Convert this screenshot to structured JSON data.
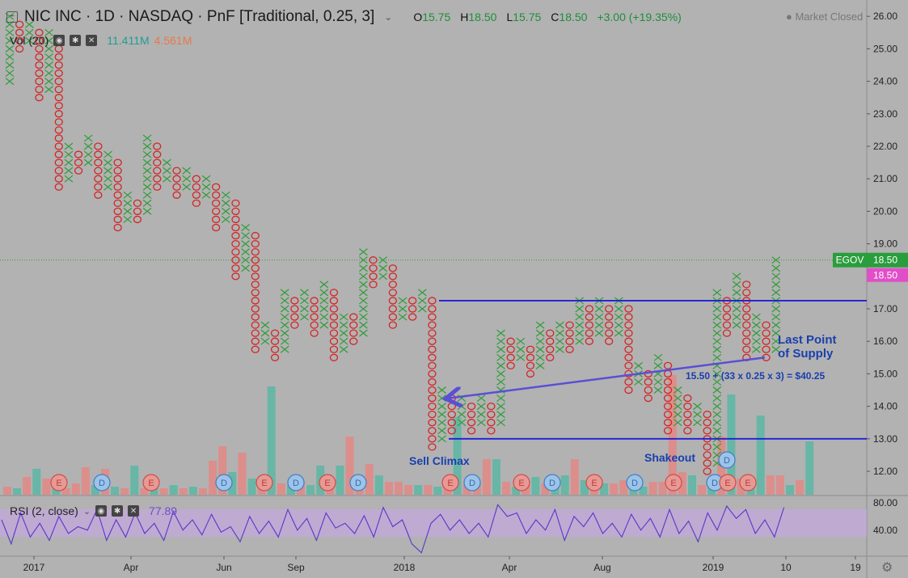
{
  "header": {
    "collapse_icon": "minus-box-icon",
    "title": "NIC INC · 1D · NASDAQ · PnF [Traditional, 0.25, 3]",
    "o_label": "O",
    "o_value": "15.75",
    "h_label": "H",
    "h_value": "18.50",
    "l_label": "L",
    "l_value": "15.75",
    "c_label": "C",
    "c_value": "18.50",
    "change": "+3.00 (+19.35%)",
    "market_status": "● Market Closed"
  },
  "volume": {
    "label": "Vol (20)",
    "value1": "11.411M",
    "value2": "4.561M"
  },
  "rsi": {
    "label": "RSI (2, close)",
    "value": "77.89"
  },
  "price_axis": {
    "ticks": [
      "26.00",
      "25.00",
      "24.00",
      "23.00",
      "22.00",
      "21.00",
      "20.00",
      "19.00",
      "18.00",
      "17.00",
      "16.00",
      "15.00",
      "14.00",
      "13.00",
      "12.00"
    ],
    "last_symbol": "EGOV",
    "last_price": "18.50",
    "pink_price": "18.50",
    "symbol_color": "#2a9d3c",
    "pink_color": "#e04fc8"
  },
  "rsi_axis": {
    "ticks": [
      "80.00",
      "40.00"
    ]
  },
  "time_axis": {
    "labels": [
      "2017",
      "Apr",
      "Jun",
      "Sep",
      "2018",
      "Apr",
      "Aug",
      "2019",
      "10",
      "19"
    ]
  },
  "colors": {
    "x": "#2f9d38",
    "o": "#d42525",
    "line": "#1f1fd6",
    "arrow": "#5a4fd6",
    "rsi": "#5a36c8",
    "rsi_band": "#c3a7dc"
  },
  "annotations": {
    "sell_climax": "Sell Climax",
    "shakeout": "Shakeout",
    "lps_line1": "Last Point",
    "lps_line2": "of Supply",
    "target": "15.50 + (33 x 0.25 x 3) = $40.25"
  },
  "chart_data": {
    "type": "point-and-figure",
    "symbol": "EGOV",
    "box_size": 0.25,
    "reversal": 3,
    "ylim": [
      11.5,
      26.25
    ],
    "columns": [
      {
        "t": "X",
        "lo": 24.0,
        "hi": 26.0
      },
      {
        "t": "O",
        "lo": 25.0,
        "hi": 25.75
      },
      {
        "t": "X",
        "lo": 25.25,
        "hi": 25.75
      },
      {
        "t": "O",
        "lo": 23.5,
        "hi": 25.5
      },
      {
        "t": "X",
        "lo": 23.75,
        "hi": 25.5
      },
      {
        "t": "O",
        "lo": 20.75,
        "hi": 25.25
      },
      {
        "t": "X",
        "lo": 21.0,
        "hi": 22.0
      },
      {
        "t": "O",
        "lo": 21.25,
        "hi": 21.75
      },
      {
        "t": "X",
        "lo": 21.5,
        "hi": 22.25
      },
      {
        "t": "O",
        "lo": 20.5,
        "hi": 22.0
      },
      {
        "t": "X",
        "lo": 20.75,
        "hi": 21.75
      },
      {
        "t": "O",
        "lo": 19.5,
        "hi": 21.5
      },
      {
        "t": "X",
        "lo": 19.75,
        "hi": 20.5
      },
      {
        "t": "O",
        "lo": 19.75,
        "hi": 20.25
      },
      {
        "t": "X",
        "lo": 20.0,
        "hi": 22.25
      },
      {
        "t": "O",
        "lo": 20.75,
        "hi": 22.0
      },
      {
        "t": "X",
        "lo": 21.0,
        "hi": 21.5
      },
      {
        "t": "O",
        "lo": 20.5,
        "hi": 21.25
      },
      {
        "t": "X",
        "lo": 20.75,
        "hi": 21.25
      },
      {
        "t": "O",
        "lo": 20.25,
        "hi": 21.0
      },
      {
        "t": "X",
        "lo": 20.5,
        "hi": 21.0
      },
      {
        "t": "O",
        "lo": 19.5,
        "hi": 20.75
      },
      {
        "t": "X",
        "lo": 19.75,
        "hi": 20.5
      },
      {
        "t": "O",
        "lo": 18.0,
        "hi": 20.25
      },
      {
        "t": "X",
        "lo": 18.25,
        "hi": 19.5
      },
      {
        "t": "O",
        "lo": 15.75,
        "hi": 19.25
      },
      {
        "t": "X",
        "lo": 16.0,
        "hi": 16.5
      },
      {
        "t": "O",
        "lo": 15.5,
        "hi": 16.25
      },
      {
        "t": "X",
        "lo": 15.75,
        "hi": 17.5
      },
      {
        "t": "O",
        "lo": 16.5,
        "hi": 17.25
      },
      {
        "t": "X",
        "lo": 16.75,
        "hi": 17.5
      },
      {
        "t": "O",
        "lo": 16.25,
        "hi": 17.25
      },
      {
        "t": "X",
        "lo": 16.5,
        "hi": 17.75
      },
      {
        "t": "O",
        "lo": 15.5,
        "hi": 17.5
      },
      {
        "t": "X",
        "lo": 15.75,
        "hi": 16.75
      },
      {
        "t": "O",
        "lo": 16.0,
        "hi": 16.75
      },
      {
        "t": "X",
        "lo": 16.25,
        "hi": 18.75
      },
      {
        "t": "O",
        "lo": 17.75,
        "hi": 18.5
      },
      {
        "t": "X",
        "lo": 18.0,
        "hi": 18.5
      },
      {
        "t": "O",
        "lo": 16.5,
        "hi": 18.25
      },
      {
        "t": "X",
        "lo": 16.75,
        "hi": 17.25
      },
      {
        "t": "O",
        "lo": 16.75,
        "hi": 17.25
      },
      {
        "t": "X",
        "lo": 17.0,
        "hi": 17.5
      },
      {
        "t": "O",
        "lo": 12.75,
        "hi": 17.25
      },
      {
        "t": "X",
        "lo": 13.0,
        "hi": 14.5
      },
      {
        "t": "O",
        "lo": 13.25,
        "hi": 14.25
      },
      {
        "t": "X",
        "lo": 13.5,
        "hi": 14.25
      },
      {
        "t": "O",
        "lo": 13.25,
        "hi": 14.0
      },
      {
        "t": "X",
        "lo": 13.5,
        "hi": 14.25
      },
      {
        "t": "O",
        "lo": 13.25,
        "hi": 14.0
      },
      {
        "t": "X",
        "lo": 13.5,
        "hi": 16.25
      },
      {
        "t": "O",
        "lo": 15.25,
        "hi": 16.0
      },
      {
        "t": "X",
        "lo": 15.5,
        "hi": 16.0
      },
      {
        "t": "O",
        "lo": 15.0,
        "hi": 15.75
      },
      {
        "t": "X",
        "lo": 15.25,
        "hi": 16.5
      },
      {
        "t": "O",
        "lo": 15.5,
        "hi": 16.25
      },
      {
        "t": "X",
        "lo": 15.75,
        "hi": 16.5
      },
      {
        "t": "O",
        "lo": 15.75,
        "hi": 16.5
      },
      {
        "t": "X",
        "lo": 16.0,
        "hi": 17.25
      },
      {
        "t": "O",
        "lo": 16.0,
        "hi": 17.0
      },
      {
        "t": "X",
        "lo": 16.25,
        "hi": 17.25
      },
      {
        "t": "O",
        "lo": 16.0,
        "hi": 17.0
      },
      {
        "t": "X",
        "lo": 16.25,
        "hi": 17.25
      },
      {
        "t": "O",
        "lo": 14.5,
        "hi": 17.0
      },
      {
        "t": "X",
        "lo": 14.75,
        "hi": 15.25
      },
      {
        "t": "O",
        "lo": 14.25,
        "hi": 15.0
      },
      {
        "t": "X",
        "lo": 14.5,
        "hi": 15.5
      },
      {
        "t": "O",
        "lo": 13.25,
        "hi": 15.25
      },
      {
        "t": "X",
        "lo": 13.5,
        "hi": 14.5
      },
      {
        "t": "O",
        "lo": 13.25,
        "hi": 14.25
      },
      {
        "t": "X",
        "lo": 13.5,
        "hi": 14.0
      },
      {
        "t": "O",
        "lo": 12.0,
        "hi": 13.75
      },
      {
        "t": "X",
        "lo": 12.25,
        "hi": 17.5
      },
      {
        "t": "O",
        "lo": 16.25,
        "hi": 17.25
      },
      {
        "t": "X",
        "lo": 16.5,
        "hi": 18.0
      },
      {
        "t": "O",
        "lo": 15.5,
        "hi": 17.75
      },
      {
        "t": "X",
        "lo": 15.75,
        "hi": 16.75
      },
      {
        "t": "O",
        "lo": 15.5,
        "hi": 16.5
      },
      {
        "t": "X",
        "lo": 15.75,
        "hi": 18.5
      }
    ],
    "support_resistance_lines": [
      {
        "price": 17.25,
        "label": "resistance"
      },
      {
        "price": 13.0,
        "label": "support"
      }
    ],
    "volume": [
      {
        "v": 0.25,
        "c": "o"
      },
      {
        "v": 0.2,
        "c": "x"
      },
      {
        "v": 0.55,
        "c": "o"
      },
      {
        "v": 0.8,
        "c": "x"
      },
      {
        "v": 0.5,
        "c": "o"
      },
      {
        "v": 0.3,
        "c": "x"
      },
      {
        "v": 0.2,
        "c": "o"
      },
      {
        "v": 0.35,
        "c": "o"
      },
      {
        "v": 0.85,
        "c": "o"
      },
      {
        "v": 0.3,
        "c": "x"
      },
      {
        "v": 0.8,
        "c": "o"
      },
      {
        "v": 0.25,
        "c": "x"
      },
      {
        "v": 0.2,
        "c": "o"
      },
      {
        "v": 0.9,
        "c": "x"
      },
      {
        "v": 0.2,
        "c": "o"
      },
      {
        "v": 0.25,
        "c": "x"
      },
      {
        "v": 0.2,
        "c": "o"
      },
      {
        "v": 0.3,
        "c": "x"
      },
      {
        "v": 0.2,
        "c": "o"
      },
      {
        "v": 0.25,
        "c": "x"
      },
      {
        "v": 0.2,
        "c": "o"
      },
      {
        "v": 1.05,
        "c": "o"
      },
      {
        "v": 1.5,
        "c": "o"
      },
      {
        "v": 0.7,
        "c": "x"
      },
      {
        "v": 1.3,
        "c": "o"
      },
      {
        "v": 0.5,
        "c": "x"
      },
      {
        "v": 0.3,
        "c": "o"
      },
      {
        "v": 3.35,
        "c": "x"
      },
      {
        "v": 0.35,
        "c": "o"
      },
      {
        "v": 0.3,
        "c": "x"
      },
      {
        "v": 0.4,
        "c": "o"
      },
      {
        "v": 0.3,
        "c": "x"
      },
      {
        "v": 0.9,
        "c": "x"
      },
      {
        "v": 0.45,
        "c": "o"
      },
      {
        "v": 0.9,
        "c": "x"
      },
      {
        "v": 1.8,
        "c": "o"
      },
      {
        "v": 0.35,
        "c": "o"
      },
      {
        "v": 0.95,
        "c": "o"
      },
      {
        "v": 0.6,
        "c": "x"
      },
      {
        "v": 0.4,
        "c": "o"
      },
      {
        "v": 0.4,
        "c": "o"
      },
      {
        "v": 0.3,
        "c": "o"
      },
      {
        "v": 0.3,
        "c": "x"
      },
      {
        "v": 0.3,
        "c": "o"
      },
      {
        "v": 0.25,
        "c": "x"
      },
      {
        "v": 0.25,
        "c": "o"
      },
      {
        "v": 2.4,
        "c": "x"
      },
      {
        "v": 0.3,
        "c": "o"
      },
      {
        "v": 0.35,
        "c": "o"
      },
      {
        "v": 1.1,
        "c": "o"
      },
      {
        "v": 1.1,
        "c": "x"
      },
      {
        "v": 0.4,
        "c": "o"
      },
      {
        "v": 0.25,
        "c": "x"
      },
      {
        "v": 0.3,
        "c": "o"
      },
      {
        "v": 0.55,
        "c": "x"
      },
      {
        "v": 0.35,
        "c": "o"
      },
      {
        "v": 0.5,
        "c": "x"
      },
      {
        "v": 0.6,
        "c": "x"
      },
      {
        "v": 1.1,
        "c": "o"
      },
      {
        "v": 0.45,
        "c": "x"
      },
      {
        "v": 0.45,
        "c": "o"
      },
      {
        "v": 0.35,
        "c": "x"
      },
      {
        "v": 0.35,
        "c": "o"
      },
      {
        "v": 0.45,
        "c": "o"
      },
      {
        "v": 0.3,
        "c": "x"
      },
      {
        "v": 0.25,
        "c": "x"
      },
      {
        "v": 0.4,
        "c": "o"
      },
      {
        "v": 0.4,
        "c": "o"
      },
      {
        "v": 3.7,
        "c": "o"
      },
      {
        "v": 0.7,
        "c": "o"
      },
      {
        "v": 0.6,
        "c": "x"
      },
      {
        "v": 0.3,
        "c": "o"
      },
      {
        "v": 0.25,
        "c": "x"
      },
      {
        "v": 1.8,
        "c": "o"
      },
      {
        "v": 3.1,
        "c": "x"
      },
      {
        "v": 0.5,
        "c": "o"
      },
      {
        "v": 0.55,
        "c": "x"
      },
      {
        "v": 2.45,
        "c": "x"
      },
      {
        "v": 0.6,
        "c": "o"
      },
      {
        "v": 0.6,
        "c": "o"
      },
      {
        "v": 0.3,
        "c": "x"
      },
      {
        "v": 0.45,
        "c": "o"
      },
      {
        "v": 1.65,
        "c": "x"
      }
    ],
    "earnings_dividend_markers": [
      "E",
      "D",
      "E",
      "D",
      "E",
      "D",
      "E",
      "D",
      "E",
      "D",
      "E",
      "D",
      "E",
      "D",
      "E",
      "D",
      "D",
      "E",
      "E"
    ],
    "rsi_values": [
      60,
      25,
      70,
      35,
      55,
      30,
      65,
      40,
      50,
      45,
      75,
      30,
      60,
      35,
      70,
      40,
      55,
      30,
      72,
      45,
      60,
      38,
      68,
      42,
      50,
      28,
      65,
      40,
      58,
      35,
      75,
      45,
      62,
      30,
      70,
      48,
      55,
      40,
      66,
      35,
      78,
      50,
      60,
      25,
      12,
      55,
      68,
      45,
      60,
      40,
      55,
      35,
      82,
      65,
      70,
      40,
      60,
      45,
      75,
      30,
      65,
      50,
      70,
      40,
      55,
      35,
      68,
      45,
      62,
      35,
      75,
      40,
      58,
      28,
      70,
      45,
      80,
      62,
      75,
      40,
      60,
      35,
      78
    ]
  }
}
